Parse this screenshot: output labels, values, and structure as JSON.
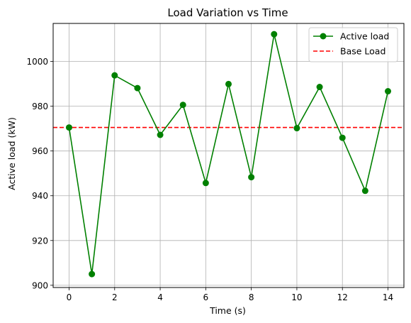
{
  "chart_data": {
    "type": "line",
    "title": "Load Variation vs Time",
    "xlabel": "Time (s)",
    "ylabel": "Active load (kW)",
    "xlim": [
      -0.7,
      14.7
    ],
    "ylim": [
      899,
      1017
    ],
    "xticks": [
      0,
      2,
      4,
      6,
      8,
      10,
      12,
      14
    ],
    "yticks": [
      900,
      920,
      940,
      960,
      980,
      1000
    ],
    "grid": true,
    "legend_position": "top-right",
    "series": [
      {
        "name": "Active load",
        "color": "#008000",
        "marker": "circle",
        "x": [
          0,
          1,
          2,
          3,
          4,
          5,
          6,
          7,
          8,
          9,
          10,
          11,
          12,
          13,
          14
        ],
        "values": [
          970.5,
          905,
          993.8,
          988.1,
          967.2,
          980.6,
          945.7,
          989.9,
          948.3,
          1012.2,
          970.2,
          988.6,
          965.9,
          942.2,
          986.7
        ]
      }
    ],
    "reference_lines": [
      {
        "name": "Base Load",
        "color": "#ff0000",
        "style": "dashed",
        "y": 970.5
      }
    ]
  }
}
